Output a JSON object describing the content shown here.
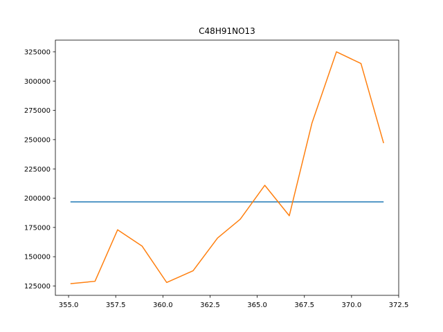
{
  "chart_data": {
    "type": "line",
    "title": "C48H91NO13",
    "xlabel": "",
    "ylabel": "",
    "xlim": [
      354.3,
      372.5
    ],
    "ylim": [
      117000,
      335000
    ],
    "x_ticks": [
      355.0,
      357.5,
      360.0,
      362.5,
      365.0,
      367.5,
      370.0,
      372.5
    ],
    "x_tick_labels": [
      "355.0",
      "357.5",
      "360.0",
      "362.5",
      "365.0",
      "367.5",
      "370.0",
      "372.5"
    ],
    "y_ticks": [
      125000,
      150000,
      175000,
      200000,
      225000,
      250000,
      275000,
      300000,
      325000
    ],
    "y_tick_labels": [
      "125000",
      "150000",
      "175000",
      "200000",
      "225000",
      "250000",
      "275000",
      "300000",
      "325000"
    ],
    "grid": false,
    "series": [
      {
        "color": "#1f77b4",
        "x": [
          355.1,
          371.7
        ],
        "y": [
          196800,
          196800
        ]
      },
      {
        "color": "#ff7f0e",
        "x": [
          355.1,
          356.4,
          357.6,
          358.9,
          360.2,
          361.6,
          362.9,
          364.1,
          365.4,
          366.7,
          367.9,
          369.2,
          370.5,
          371.7
        ],
        "y": [
          127000,
          129000,
          173000,
          159000,
          128000,
          138000,
          166000,
          182000,
          211000,
          185000,
          264000,
          325000,
          315000,
          247000
        ]
      }
    ]
  }
}
